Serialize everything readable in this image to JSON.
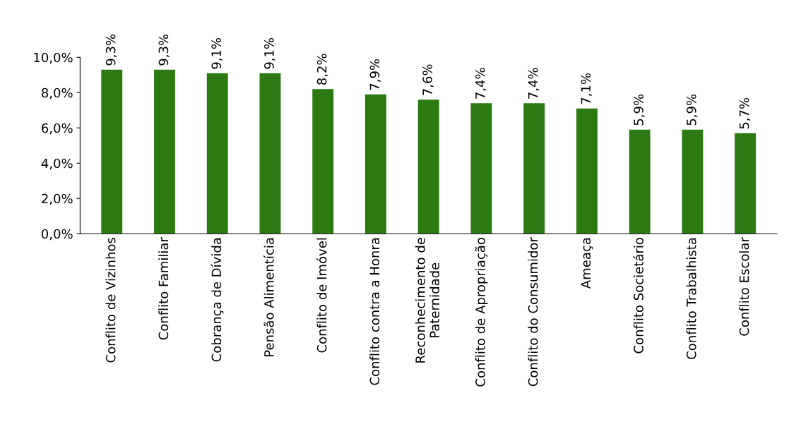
{
  "chart_data": {
    "type": "bar",
    "categories": [
      "Conflito de Vizinhos",
      "Conflito Familiar",
      "Cobrança de Dívida",
      "Pensão Alimentícia",
      "Conflito de Imóvel",
      "Conflito contra a Honra",
      "Reconhecimento de\nPaternidade",
      "Conflito de Apropriação",
      "Conflito do Consumidor",
      "Ameaça",
      "Conflito Societário",
      "Conflito Trabalhista",
      "Conflito Escolar"
    ],
    "values": [
      9.3,
      9.3,
      9.1,
      9.1,
      8.2,
      7.9,
      7.6,
      7.4,
      7.4,
      7.1,
      5.9,
      5.9,
      5.7
    ],
    "value_labels": [
      "9,3%",
      "9,3%",
      "9,1%",
      "9,1%",
      "8,2%",
      "7,9%",
      "7,6%",
      "7,4%",
      "7,4%",
      "7,1%",
      "5,9%",
      "5,9%",
      "5,7%"
    ],
    "color": "#2b7a12",
    "ylim": [
      0,
      10
    ],
    "yticks": [
      {
        "value": 0,
        "label": "0,0%"
      },
      {
        "value": 2,
        "label": "2,0%"
      },
      {
        "value": 4,
        "label": "4,0%"
      },
      {
        "value": 6,
        "label": "6,0%"
      },
      {
        "value": 8,
        "label": "8,0%"
      },
      {
        "value": 10,
        "label": "10,0%"
      }
    ],
    "grid": false
  }
}
